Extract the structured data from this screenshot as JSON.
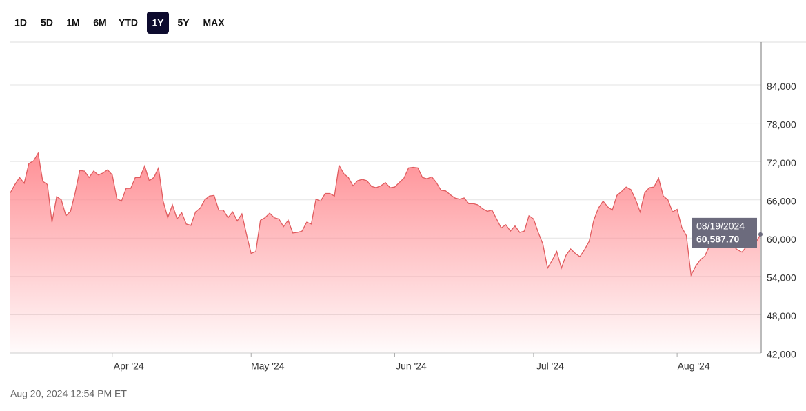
{
  "range_buttons": [
    "1D",
    "5D",
    "1M",
    "6M",
    "YTD",
    "1Y",
    "5Y",
    "MAX"
  ],
  "selected_range": "1Y",
  "footer": "Aug 20, 2024 12:54 PM ET",
  "chart_data": {
    "type": "area",
    "color": "#e05c5f",
    "categories": [
      null,
      null,
      null,
      null,
      null,
      null,
      null,
      null,
      null,
      null,
      null,
      null,
      null,
      null,
      null,
      null,
      null,
      null,
      null,
      null,
      null,
      null,
      "Apr '24",
      null,
      null,
      null,
      null,
      null,
      null,
      null,
      null,
      null,
      null,
      null,
      null,
      null,
      null,
      null,
      null,
      null,
      null,
      null,
      null,
      null,
      null,
      null,
      null,
      null,
      null,
      null,
      null,
      null,
      "May '24",
      null,
      null,
      null,
      null,
      null,
      null,
      null,
      null,
      null,
      null,
      null,
      null,
      null,
      null,
      null,
      null,
      null,
      null,
      null,
      null,
      null,
      null,
      null,
      null,
      null,
      null,
      null,
      null,
      null,
      null,
      "Jun '24",
      null,
      null,
      null,
      null,
      null,
      null,
      null,
      null,
      null,
      null,
      null,
      null,
      null,
      null,
      null,
      null,
      null,
      null,
      null,
      null,
      null,
      null,
      null,
      null,
      null,
      null,
      null,
      null,
      null,
      "Jul '24",
      null,
      null,
      null,
      null,
      null,
      null,
      null,
      null,
      null,
      null,
      null,
      null,
      null,
      null,
      null,
      null,
      null,
      null,
      null,
      null,
      null,
      null,
      null,
      null,
      null,
      null,
      null,
      null,
      null,
      null,
      "Aug '24",
      null,
      null,
      null,
      null,
      null,
      null,
      null,
      null,
      null,
      null,
      null,
      null,
      null,
      null,
      null,
      null,
      null,
      "08/19/2024"
    ],
    "values": [
      67100,
      68400,
      69500,
      68600,
      71700,
      72100,
      73300,
      68900,
      68400,
      62500,
      66500,
      66000,
      63500,
      64200,
      67100,
      70600,
      70500,
      69500,
      70500,
      69900,
      70200,
      70700,
      69900,
      66200,
      65800,
      67800,
      67800,
      69500,
      69500,
      71300,
      69000,
      69500,
      71000,
      65800,
      63200,
      65200,
      63000,
      64000,
      62200,
      62000,
      64100,
      64700,
      66000,
      66600,
      66700,
      64400,
      64400,
      63200,
      64100,
      62700,
      63800,
      60600,
      57600,
      57900,
      62800,
      63200,
      63900,
      63200,
      63000,
      61800,
      62800,
      60800,
      60900,
      61100,
      62500,
      62200,
      66100,
      65800,
      67000,
      67000,
      66600,
      71400,
      70100,
      69500,
      68200,
      69000,
      69200,
      69000,
      68100,
      67900,
      68200,
      68700,
      67900,
      68000,
      68700,
      69400,
      71000,
      71100,
      71000,
      69500,
      69300,
      69600,
      68700,
      67500,
      67400,
      66800,
      66300,
      66100,
      66300,
      65400,
      65400,
      65200,
      64600,
      64200,
      64400,
      63000,
      61600,
      62100,
      61100,
      61900,
      60900,
      61100,
      63500,
      63000,
      60900,
      59100,
      55300,
      56500,
      57900,
      55300,
      57300,
      58300,
      57600,
      57100,
      58200,
      59500,
      62800,
      64700,
      65800,
      64900,
      64400,
      66700,
      67300,
      68000,
      67600,
      66100,
      64100,
      67100,
      67900,
      68000,
      69400,
      66600,
      66000,
      64100,
      64500,
      61700,
      60400,
      54200,
      55600,
      56600,
      57200,
      58800,
      58500,
      58700,
      58700,
      59000,
      58800,
      58200,
      57800,
      58700,
      58700,
      59300,
      60587.7
    ],
    "value_labels": [
      null,
      null,
      null,
      null,
      null,
      null,
      null,
      null,
      null,
      null,
      null,
      null,
      null,
      null,
      null,
      null,
      null,
      null,
      null,
      null,
      null,
      null,
      null,
      null,
      null,
      null,
      null,
      null,
      null,
      null,
      null,
      null,
      null,
      null,
      null,
      null,
      null,
      null,
      null,
      null,
      null,
      null,
      null,
      null,
      null,
      null,
      null,
      null,
      null,
      null,
      null,
      null,
      null,
      null,
      null,
      null,
      null,
      null,
      null,
      null,
      null,
      null,
      null,
      null,
      null,
      null,
      null,
      null,
      null,
      null,
      null,
      null,
      null,
      null,
      null,
      null,
      null,
      null,
      null,
      null,
      null,
      null,
      null,
      null,
      null,
      null,
      null,
      null,
      null,
      null,
      null,
      null,
      null,
      null,
      null,
      null,
      null,
      null,
      null,
      null,
      null,
      null,
      null,
      null,
      null,
      null,
      null,
      null,
      null,
      null,
      null,
      null,
      null,
      null,
      null,
      null,
      null,
      null,
      null,
      null,
      null,
      null,
      null,
      null,
      null,
      null,
      null,
      null,
      null,
      null,
      null,
      null,
      null,
      null,
      null,
      null,
      null,
      null,
      null,
      null,
      null,
      null,
      null,
      null,
      null,
      null,
      null,
      null,
      null,
      null,
      null,
      null,
      null,
      null,
      null,
      null,
      null,
      null,
      null,
      null,
      null,
      null,
      "60,587.70"
    ],
    "ylim": [
      42000,
      90700
    ],
    "yticks": [
      {
        "value": 42000,
        "label": "42,000"
      },
      {
        "value": 48000,
        "label": "48,000"
      },
      {
        "value": 54000,
        "label": "54,000"
      },
      {
        "value": 60000,
        "label": "60,000"
      },
      {
        "value": 66000,
        "label": "66,000"
      },
      {
        "value": 72000,
        "label": "72,000"
      },
      {
        "value": 78000,
        "label": "78,000"
      },
      {
        "value": 84000,
        "label": "84,000"
      }
    ],
    "grid": true
  }
}
